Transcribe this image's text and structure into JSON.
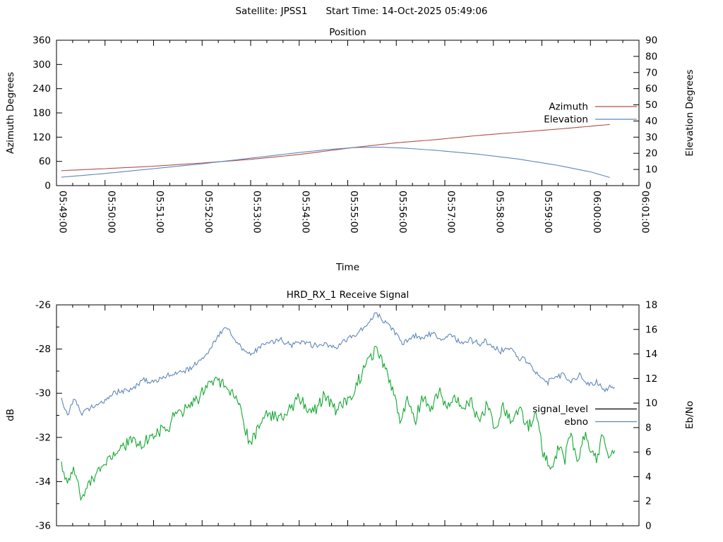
{
  "header": {
    "satellite": "Satellite: JPSS1",
    "start_time": "Start Time: 14-Oct-2025 05:49:06"
  },
  "colors": {
    "azimuth": "#b4504b",
    "elevation": "#5f87b9",
    "signal_level_plot": "#14a832",
    "signal_level_key": "#000000",
    "ebno": "#5f87b9",
    "axis": "#000000",
    "background": "#ffffff"
  },
  "chart_data": [
    {
      "type": "line",
      "title": "Position",
      "xlabel": "Time",
      "x_range_s": [
        0,
        720
      ],
      "x_start_label": "05:49:00",
      "x_tick_labels": [
        "05:49:00",
        "05:50:00",
        "05:51:00",
        "05:52:00",
        "05:53:00",
        "05:54:00",
        "05:55:00",
        "05:56:00",
        "05:57:00",
        "05:58:00",
        "05:59:00",
        "06:00:00",
        "06:01:00"
      ],
      "x_major_step_s": 60,
      "x_minor_per_major": 2,
      "show_x_tick_labels": true,
      "grid": false,
      "axes": {
        "left": {
          "label": "Azimuth Degrees",
          "range": [
            0,
            360
          ],
          "tick_step": 60,
          "minor_step": 0
        },
        "right": {
          "label": "Elevation Degrees",
          "range": [
            0,
            90
          ],
          "tick_step": 10,
          "minor_step": 0
        }
      },
      "legend": {
        "position": "right-center-inside",
        "entries": [
          {
            "label": "Azimuth",
            "color": "#b4504b"
          },
          {
            "label": "Elevation",
            "color": "#5f87b9"
          }
        ]
      },
      "series": [
        {
          "name": "Azimuth",
          "axis": "left",
          "color": "#b4504b",
          "noise": 0,
          "seed": 3,
          "points": [
            [
              6,
              37
            ],
            [
              60,
              42
            ],
            [
              120,
              48
            ],
            [
              180,
              56
            ],
            [
              240,
              65
            ],
            [
              300,
              77
            ],
            [
              366,
              94
            ],
            [
              420,
              106
            ],
            [
              470,
              114
            ],
            [
              520,
              124
            ],
            [
              570,
              132
            ],
            [
              620,
              140
            ],
            [
              660,
              147
            ],
            [
              687,
              152
            ]
          ]
        },
        {
          "name": "Elevation",
          "axis": "right",
          "color": "#5f87b9",
          "noise": 0,
          "seed": 5,
          "points": [
            [
              6,
              5.2
            ],
            [
              60,
              7.5
            ],
            [
              120,
              10.5
            ],
            [
              180,
              13.5
            ],
            [
              240,
              17
            ],
            [
              300,
              20.5
            ],
            [
              340,
              22.5
            ],
            [
              370,
              23.6
            ],
            [
              400,
              23.8
            ],
            [
              430,
              23.2
            ],
            [
              470,
              21.8
            ],
            [
              520,
              19.5
            ],
            [
              570,
              16.5
            ],
            [
              620,
              12.5
            ],
            [
              660,
              8.5
            ],
            [
              687,
              4.6
            ]
          ]
        }
      ]
    },
    {
      "type": "line",
      "title": "HRD_RX_1 Receive Signal",
      "xlabel": "",
      "x_range_s": [
        0,
        720
      ],
      "x_major_step_s": 60,
      "x_minor_per_major": 2,
      "show_x_tick_labels": false,
      "grid": false,
      "axes": {
        "left": {
          "label": "dB",
          "range": [
            -36,
            -26
          ],
          "tick_step": 2,
          "minor_step": 1
        },
        "right": {
          "label": "Eb/No",
          "range": [
            0,
            18
          ],
          "tick_step": 2,
          "minor_step": 0
        }
      },
      "legend": {
        "position": "right-center-inside",
        "entries": [
          {
            "label": "signal_level",
            "color": "#000000"
          },
          {
            "label": "ebno",
            "color": "#5f87b9"
          }
        ]
      },
      "series": [
        {
          "name": "signal_level",
          "axis": "left",
          "color": "#14a832",
          "noise": 0.3,
          "seed": 97,
          "points": [
            [
              6,
              -33.2
            ],
            [
              14,
              -34.4
            ],
            [
              22,
              -33.6
            ],
            [
              32,
              -34.6
            ],
            [
              44,
              -33.9
            ],
            [
              56,
              -33.2
            ],
            [
              70,
              -32.8
            ],
            [
              90,
              -32.4
            ],
            [
              110,
              -32.1
            ],
            [
              131,
              -31.5
            ],
            [
              150,
              -31.0
            ],
            [
              166,
              -30.7
            ],
            [
              183,
              -29.8
            ],
            [
              196,
              -29.2
            ],
            [
              210,
              -29.4
            ],
            [
              224,
              -30.3
            ],
            [
              238,
              -32.1
            ],
            [
              248,
              -31.6
            ],
            [
              262,
              -30.7
            ],
            [
              280,
              -31.0
            ],
            [
              300,
              -30.3
            ],
            [
              316,
              -30.9
            ],
            [
              330,
              -30.2
            ],
            [
              345,
              -30.7
            ],
            [
              360,
              -30.0
            ],
            [
              372,
              -29.5
            ],
            [
              384,
              -28.6
            ],
            [
              394,
              -27.9
            ],
            [
              404,
              -28.4
            ],
            [
              414,
              -29.7
            ],
            [
              424,
              -31.3
            ],
            [
              434,
              -30.2
            ],
            [
              444,
              -31.1
            ],
            [
              452,
              -29.9
            ],
            [
              462,
              -30.7
            ],
            [
              472,
              -30.0
            ],
            [
              482,
              -30.8
            ],
            [
              492,
              -30.1
            ],
            [
              502,
              -31.0
            ],
            [
              512,
              -30.2
            ],
            [
              522,
              -31.2
            ],
            [
              532,
              -30.4
            ],
            [
              542,
              -31.4
            ],
            [
              552,
              -30.5
            ],
            [
              562,
              -31.2
            ],
            [
              572,
              -30.6
            ],
            [
              582,
              -31.3
            ],
            [
              592,
              -31.0
            ],
            [
              602,
              -32.9
            ],
            [
              612,
              -33.5
            ],
            [
              620,
              -32.4
            ],
            [
              628,
              -33.3
            ],
            [
              636,
              -32.0
            ],
            [
              644,
              -33.2
            ],
            [
              652,
              -31.9
            ],
            [
              660,
              -32.8
            ],
            [
              668,
              -33.2
            ],
            [
              676,
              -31.9
            ],
            [
              683,
              -32.9
            ],
            [
              690,
              -32.5
            ]
          ]
        },
        {
          "name": "ebno",
          "axis": "right",
          "color": "#5f87b9",
          "noise": 0.24,
          "seed": 41,
          "points": [
            [
              6,
              10.2
            ],
            [
              14,
              9.0
            ],
            [
              22,
              10.3
            ],
            [
              32,
              9.2
            ],
            [
              44,
              9.9
            ],
            [
              56,
              10.0
            ],
            [
              70,
              10.6
            ],
            [
              90,
              11.1
            ],
            [
              110,
              11.7
            ],
            [
              131,
              12.1
            ],
            [
              150,
              12.5
            ],
            [
              166,
              12.8
            ],
            [
              183,
              13.9
            ],
            [
              196,
              15.3
            ],
            [
              207,
              16.0
            ],
            [
              218,
              15.6
            ],
            [
              230,
              14.6
            ],
            [
              240,
              13.7
            ],
            [
              252,
              14.5
            ],
            [
              264,
              14.9
            ],
            [
              276,
              15.2
            ],
            [
              290,
              14.7
            ],
            [
              304,
              15.1
            ],
            [
              318,
              14.6
            ],
            [
              332,
              15.0
            ],
            [
              346,
              14.5
            ],
            [
              360,
              15.1
            ],
            [
              372,
              15.6
            ],
            [
              384,
              16.5
            ],
            [
              396,
              17.3
            ],
            [
              406,
              16.6
            ],
            [
              416,
              16.2
            ],
            [
              428,
              14.9
            ],
            [
              440,
              15.6
            ],
            [
              452,
              15.1
            ],
            [
              464,
              15.6
            ],
            [
              476,
              14.9
            ],
            [
              488,
              15.5
            ],
            [
              500,
              14.8
            ],
            [
              512,
              15.3
            ],
            [
              524,
              14.7
            ],
            [
              536,
              15.0
            ],
            [
              548,
              14.3
            ],
            [
              560,
              14.6
            ],
            [
              572,
              13.9
            ],
            [
              584,
              13.5
            ],
            [
              596,
              12.2
            ],
            [
              606,
              11.6
            ],
            [
              616,
              11.9
            ],
            [
              628,
              12.5
            ],
            [
              638,
              11.8
            ],
            [
              648,
              12.2
            ],
            [
              658,
              11.3
            ],
            [
              668,
              11.6
            ],
            [
              678,
              10.9
            ],
            [
              690,
              11.3
            ]
          ]
        }
      ]
    }
  ]
}
